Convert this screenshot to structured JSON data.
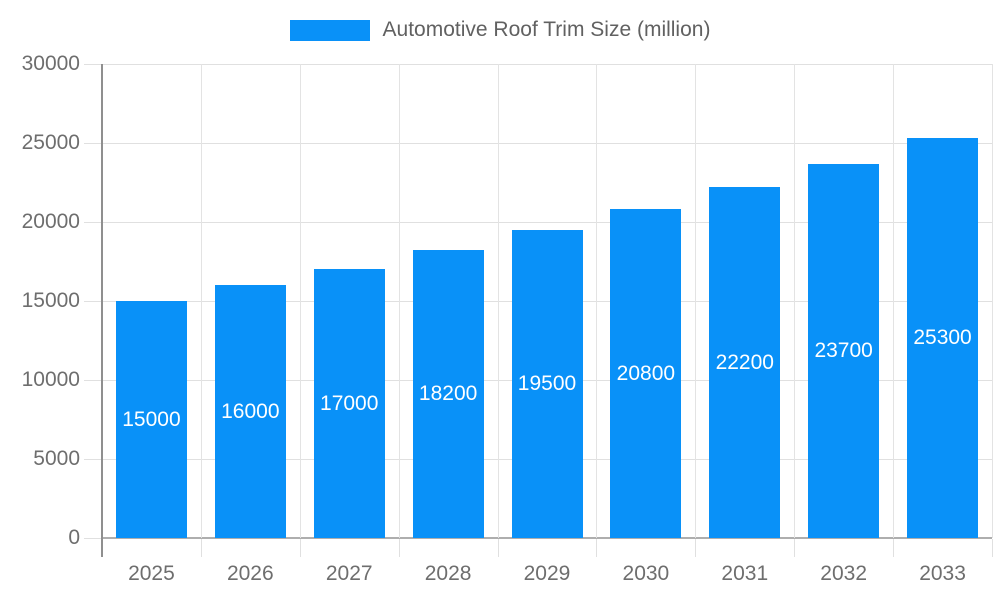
{
  "chart_data": {
    "type": "bar",
    "title": "Automotive Roof Trim Size (million)",
    "categories": [
      "2025",
      "2026",
      "2027",
      "2028",
      "2029",
      "2030",
      "2031",
      "2032",
      "2033"
    ],
    "values": [
      15000,
      16000,
      17000,
      18200,
      19500,
      20800,
      22200,
      23700,
      25300
    ],
    "y_ticks": [
      0,
      5000,
      10000,
      15000,
      20000,
      25000,
      30000
    ],
    "ylim": [
      0,
      30000
    ],
    "grid": "on",
    "legend_position": "top",
    "bar_color": "#0991f8",
    "bar_label_color": "#ffffff",
    "axis_text_color": "#6e6e6e",
    "legend_text_color": "#616161",
    "gridline_color": "#e0e0e0",
    "axis_line_color": "#8f8f8f"
  }
}
